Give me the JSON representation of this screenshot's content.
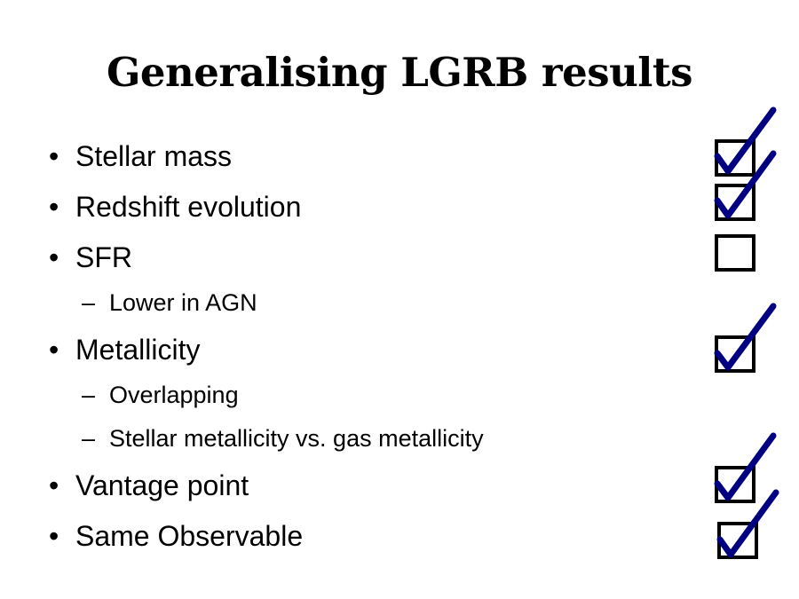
{
  "slide": {
    "title": "Generalising LGRB results",
    "bullet_symbol": "•",
    "sub_bullet_symbol": "–",
    "items": [
      {
        "label": "Stellar mass",
        "checked": true
      },
      {
        "label": "Redshift evolution",
        "checked": true
      },
      {
        "label": "SFR",
        "checked": false
      },
      {
        "label": "Lower in AGN"
      },
      {
        "label": "Metallicity",
        "checked": true
      },
      {
        "label": "Overlapping"
      },
      {
        "label": "Stellar metallicity vs. gas metallicity"
      },
      {
        "label": "Vantage point",
        "checked": true
      },
      {
        "label": "Same Observable",
        "checked": true
      }
    ],
    "tick_color": "#000080"
  }
}
